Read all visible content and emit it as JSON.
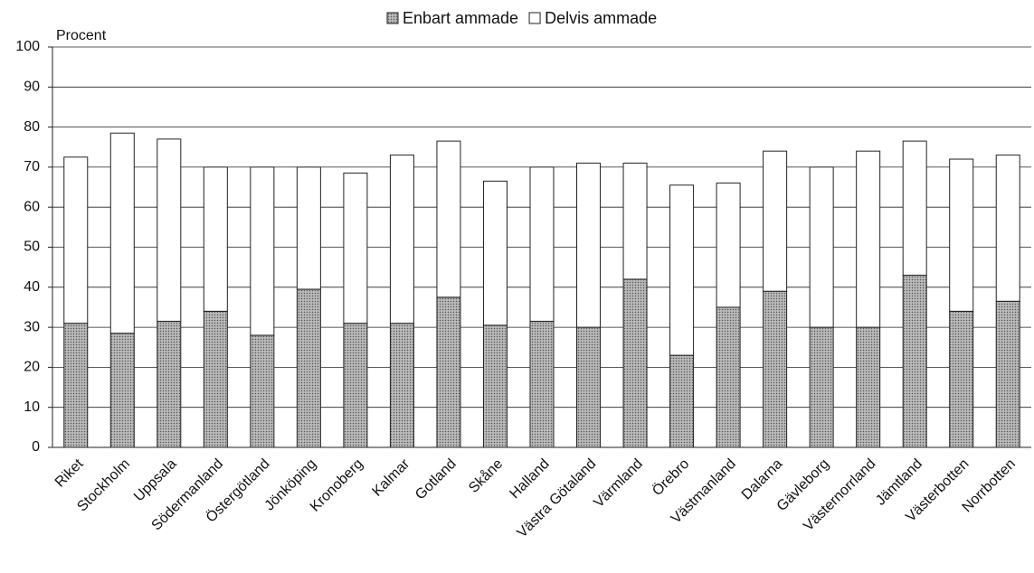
{
  "chart_data": {
    "type": "stacked_bar",
    "y_label": "Procent",
    "categories": [
      "Riket",
      "Stockholm",
      "Uppsala",
      "Södermanland",
      "Östergötland",
      "Jönköping",
      "Kronoberg",
      "Kalmar",
      "Gotland",
      "Skåne",
      "Halland",
      "Västra Götaland",
      "Värmland",
      "Örebro",
      "Västmanland",
      "Dalarna",
      "Gävleborg",
      "Västernorrland",
      "Jämtland",
      "Västerbotten",
      "Norrbotten"
    ],
    "series": [
      {
        "name": "Enbart ammade",
        "color": "#a8a8a8",
        "values": [
          31,
          28.5,
          31.5,
          34,
          28,
          39.5,
          31,
          31,
          37.5,
          30.5,
          31.5,
          30,
          42,
          23,
          35,
          39,
          30,
          30,
          43,
          34,
          36.5
        ]
      },
      {
        "name": "Delvis ammade",
        "color": "#ffffff",
        "values": [
          41.5,
          50,
          45.5,
          36,
          42,
          30.5,
          37.5,
          42,
          39,
          36,
          38.5,
          41,
          29,
          42.5,
          31,
          35,
          40,
          44,
          33.5,
          38,
          36.5
        ]
      }
    ],
    "ylim": [
      0,
      100
    ],
    "yticks": [
      0,
      10,
      20,
      30,
      40,
      50,
      60,
      70,
      80,
      90,
      100
    ],
    "grid": true
  }
}
